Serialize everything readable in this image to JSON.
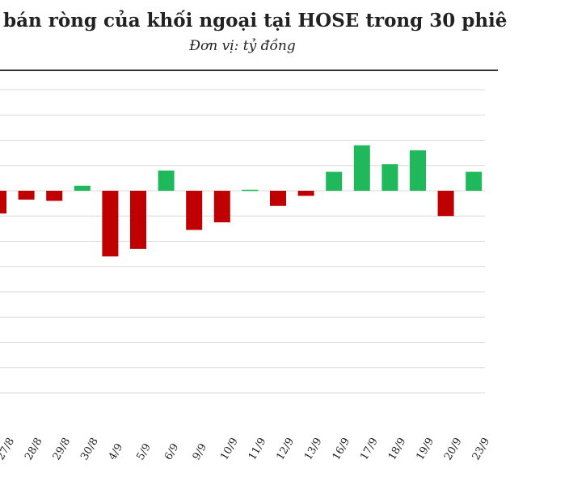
{
  "chart_data": {
    "type": "bar",
    "title": "bán ròng của khối ngoại tại HOSE trong 30 phiê",
    "subtitle": "Đơn vị: tỷ đồng",
    "xlabel": "",
    "ylabel": "",
    "categories": [
      "27/8",
      "28/8",
      "29/8",
      "30/8",
      "4/9",
      "5/9",
      "6/9",
      "9/9",
      "10/9",
      "11/9",
      "12/9",
      "13/9",
      "16/9",
      "17/9",
      "18/9",
      "19/9",
      "20/9",
      "23/9"
    ],
    "values": [
      -90,
      -35,
      -40,
      20,
      -260,
      -230,
      80,
      -155,
      -125,
      4,
      -60,
      -20,
      75,
      180,
      105,
      160,
      -100,
      75
    ],
    "ylim": [
      -820,
      400
    ],
    "grid": true,
    "colors": {
      "positive": "#1fb85a",
      "negative": "#c00000"
    }
  }
}
